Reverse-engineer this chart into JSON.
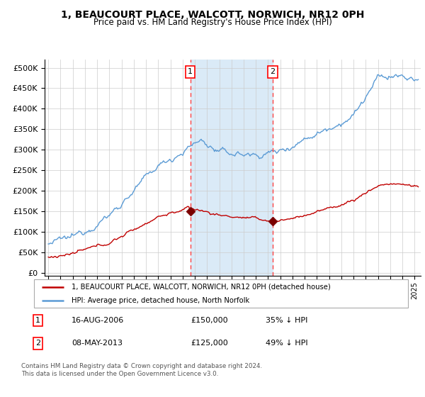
{
  "title": "1, BEAUCOURT PLACE, WALCOTT, NORWICH, NR12 0PH",
  "subtitle": "Price paid vs. HM Land Registry's House Price Index (HPI)",
  "legend_property": "1, BEAUCOURT PLACE, WALCOTT, NORWICH, NR12 0PH (detached house)",
  "legend_hpi": "HPI: Average price, detached house, North Norfolk",
  "annotation_note": "Contains HM Land Registry data © Crown copyright and database right 2024.\nThis data is licensed under the Open Government Licence v3.0.",
  "sale1_date": "16-AUG-2006",
  "sale1_price": 150000,
  "sale1_hpi_diff": "35% ↓ HPI",
  "sale2_date": "08-MAY-2013",
  "sale2_price": 125000,
  "sale2_hpi_diff": "49% ↓ HPI",
  "hpi_color": "#5B9BD5",
  "price_color": "#C00000",
  "sale_marker_color": "#7B0000",
  "vline_color": "#FF4444",
  "shade_color": "#DAEAF7",
  "yticks": [
    0,
    50000,
    100000,
    150000,
    200000,
    250000,
    300000,
    350000,
    400000,
    450000,
    500000
  ],
  "ylim": [
    -8000,
    520000
  ],
  "xlim_start": 1994.7,
  "xlim_end": 2025.5,
  "sale1_t": 2006.625,
  "sale2_t": 2013.37
}
